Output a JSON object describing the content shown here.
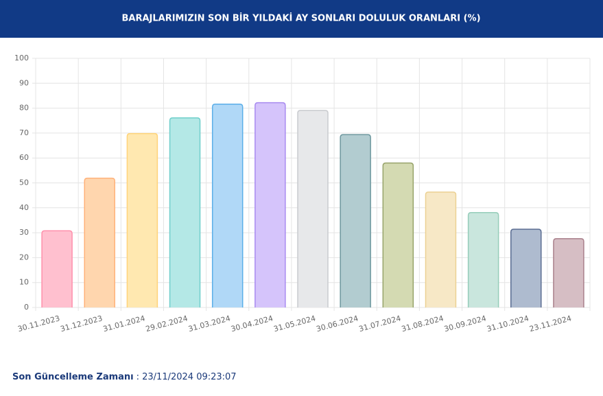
{
  "chart_data": {
    "type": "bar",
    "title": "BARAJLARIMIZIN SON BİR YILDAKİ AY SONLARI DOLULUK ORANLARI (%)",
    "categories": [
      "30.11.2023",
      "31.12.2023",
      "31.01.2024",
      "29.02.2024",
      "31.03.2024",
      "30.04.2024",
      "31.05.2024",
      "30.06.2024",
      "31.07.2024",
      "31.08.2024",
      "30.09.2024",
      "31.10.2024",
      "23.11.2024"
    ],
    "values": [
      30.8,
      51.9,
      69.8,
      76.1,
      81.6,
      82.2,
      79.1,
      69.4,
      58.0,
      46.3,
      38.1,
      31.4,
      27.6
    ],
    "colors": [
      "#ffc0cf",
      "#ffd6ae",
      "#ffe8b0",
      "#b4e8e6",
      "#b0d8f7",
      "#d5c4fb",
      "#e7e8ea",
      "#b2ccd0",
      "#d4dab2",
      "#f7e8c6",
      "#c9e6dd",
      "#aebbcf",
      "#d6bec4"
    ],
    "border_colors": [
      "#ff8fab",
      "#ffb27a",
      "#ffd37a",
      "#6fcfcb",
      "#5aaee8",
      "#a88af0",
      "#c9cbcf",
      "#6d979e",
      "#97a36a",
      "#ecd193",
      "#95cdb9",
      "#5a6d92",
      "#a9808b"
    ],
    "ylim": [
      0,
      100
    ],
    "yticks": [
      0,
      10,
      20,
      30,
      40,
      50,
      60,
      70,
      80,
      90,
      100
    ],
    "grid": true
  },
  "footer": {
    "label": "Son Güncelleme Zamanı",
    "value": ": 23/11/2024 09:23:07"
  }
}
